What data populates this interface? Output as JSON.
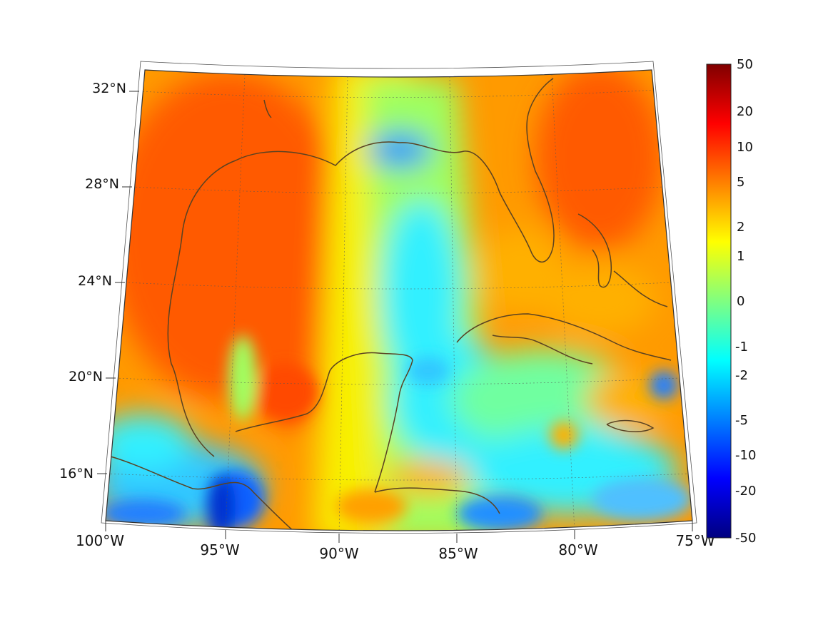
{
  "map": {
    "lat_labels": [
      "32°N",
      "28°N",
      "24°N",
      "20°N",
      "16°N"
    ],
    "lon_labels": [
      "100°W",
      "95°W",
      "90°W",
      "85°W",
      "80°W",
      "75°W"
    ]
  },
  "colorbar": {
    "tick_labels": [
      "50",
      "20",
      "10",
      "5",
      "2",
      "1",
      "0",
      "-1",
      "-2",
      "-5",
      "-10",
      "-20",
      "-50"
    ],
    "colors": [
      "#800000",
      "#ff0000",
      "#ff8000",
      "#ffff00",
      "#80ff80",
      "#00ffff",
      "#0080ff",
      "#0000ff",
      "#000080"
    ]
  }
}
